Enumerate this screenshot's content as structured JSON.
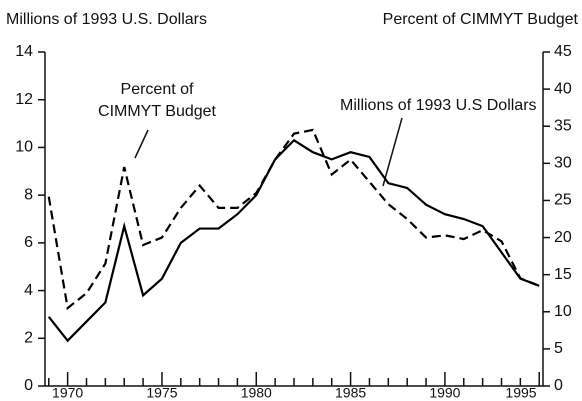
{
  "chart_data": {
    "type": "line",
    "y_label": "Millions of 1993 U.S. Dollars",
    "y2_label": "Percent of CIMMYT Budget",
    "x": [
      1969,
      1970,
      1971,
      1972,
      1973,
      1974,
      1975,
      1976,
      1977,
      1978,
      1979,
      1980,
      1981,
      1982,
      1983,
      1984,
      1985,
      1986,
      1987,
      1988,
      1989,
      1990,
      1991,
      1992,
      1993,
      1994,
      1995
    ],
    "series": [
      {
        "name": "Millions of 1993 U.S Dollars",
        "color": "#000000",
        "dash": "solid",
        "values": [
          2.9,
          1.9,
          2.7,
          3.5,
          6.7,
          3.8,
          4.5,
          6.0,
          6.6,
          6.6,
          7.2,
          8.0,
          9.5,
          10.3,
          9.8,
          9.5,
          9.8,
          9.6,
          8.5,
          8.3,
          7.6,
          7.2,
          7.0,
          6.7,
          5.6,
          4.5,
          4.2
        ]
      },
      {
        "name": [
          "Percent of",
          "CIMMYT Budget"
        ],
        "color": "#000000",
        "dash": "dashed",
        "axis": "y2",
        "values": [
          25.5,
          10.5,
          12.5,
          16.5,
          29.5,
          19,
          20,
          24,
          27,
          24,
          24,
          26,
          30.5,
          34,
          34.5,
          28.5,
          30.5,
          27.5,
          24.5,
          22.5,
          20,
          20.3,
          19.8,
          21,
          19.5,
          14.5,
          13.5
        ]
      }
    ],
    "xlim": [
      1968.8,
      1995.2
    ],
    "xticks": [
      1970,
      1975,
      1980,
      1985,
      1990,
      1995
    ],
    "xminorticks": [
      1969,
      1971,
      1972,
      1973,
      1974,
      1976,
      1977,
      1978,
      1979,
      1981,
      1982,
      1983,
      1984,
      1986,
      1987,
      1988,
      1989,
      1991,
      1992,
      1993,
      1994
    ],
    "ylim": [
      0,
      14
    ],
    "yticks": [
      0,
      2,
      4,
      6,
      8,
      10,
      12,
      14
    ],
    "y2lim": [
      0,
      45
    ],
    "y2ticks": [
      0,
      5,
      10,
      15,
      20,
      25,
      30,
      35,
      40,
      45
    ]
  }
}
